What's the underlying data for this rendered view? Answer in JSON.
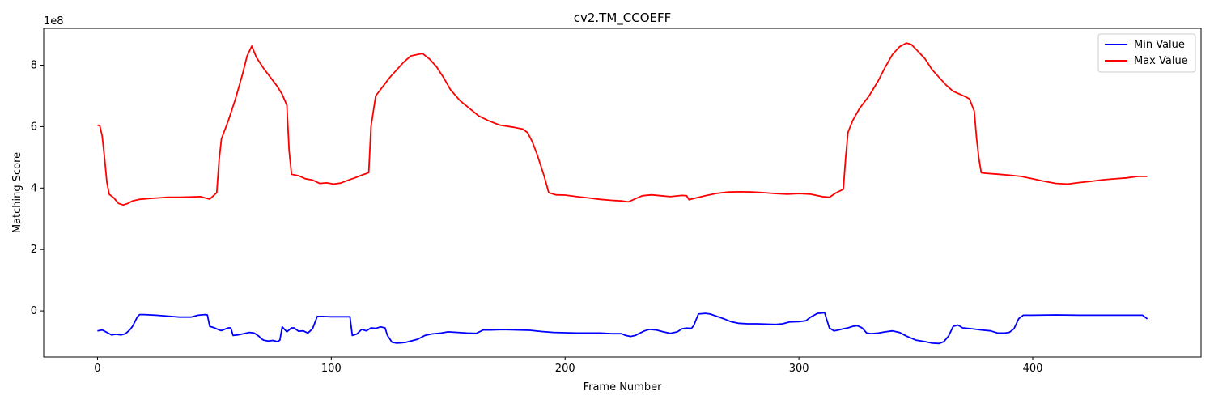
{
  "chart_data": {
    "type": "line",
    "title": "cv2.TM_CCOEFF",
    "xlabel": "Frame Number",
    "ylabel": "Matching Score",
    "y_offset_label": "1e8",
    "xlim": [
      -23,
      472
    ],
    "ylim": [
      -1.5,
      9.2
    ],
    "x_ticks": [
      0,
      100,
      200,
      300,
      400
    ],
    "y_ticks": [
      0,
      2,
      4,
      6,
      8
    ],
    "grid": false,
    "legend_position": "top-right",
    "series": [
      {
        "name": "Min Value",
        "color": "#0000ff",
        "points": [
          [
            0,
            -0.65
          ],
          [
            2,
            -0.62
          ],
          [
            4,
            -0.7
          ],
          [
            6,
            -0.78
          ],
          [
            8,
            -0.76
          ],
          [
            10,
            -0.78
          ],
          [
            12,
            -0.74
          ],
          [
            14,
            -0.6
          ],
          [
            15,
            -0.5
          ],
          [
            17,
            -0.2
          ],
          [
            18,
            -0.12
          ],
          [
            20,
            -0.12
          ],
          [
            25,
            -0.14
          ],
          [
            30,
            -0.17
          ],
          [
            35,
            -0.2
          ],
          [
            40,
            -0.2
          ],
          [
            43,
            -0.14
          ],
          [
            46,
            -0.12
          ],
          [
            47,
            -0.13
          ],
          [
            48,
            -0.5
          ],
          [
            50,
            -0.55
          ],
          [
            52,
            -0.62
          ],
          [
            53,
            -0.64
          ],
          [
            55,
            -0.58
          ],
          [
            56,
            -0.55
          ],
          [
            57,
            -0.55
          ],
          [
            58,
            -0.8
          ],
          [
            60,
            -0.78
          ],
          [
            62,
            -0.75
          ],
          [
            65,
            -0.7
          ],
          [
            67,
            -0.72
          ],
          [
            69,
            -0.82
          ],
          [
            70,
            -0.9
          ],
          [
            71,
            -0.95
          ],
          [
            73,
            -0.98
          ],
          [
            75,
            -0.96
          ],
          [
            77,
            -1.0
          ],
          [
            78,
            -0.95
          ],
          [
            79,
            -0.52
          ],
          [
            80,
            -0.6
          ],
          [
            81,
            -0.68
          ],
          [
            83,
            -0.55
          ],
          [
            84,
            -0.55
          ],
          [
            86,
            -0.66
          ],
          [
            88,
            -0.65
          ],
          [
            90,
            -0.72
          ],
          [
            92,
            -0.58
          ],
          [
            94,
            -0.18
          ],
          [
            96,
            -0.18
          ],
          [
            100,
            -0.19
          ],
          [
            105,
            -0.19
          ],
          [
            107,
            -0.19
          ],
          [
            108,
            -0.19
          ],
          [
            109,
            -0.8
          ],
          [
            111,
            -0.75
          ],
          [
            113,
            -0.6
          ],
          [
            115,
            -0.65
          ],
          [
            117,
            -0.55
          ],
          [
            119,
            -0.57
          ],
          [
            121,
            -0.52
          ],
          [
            123,
            -0.55
          ],
          [
            124,
            -0.8
          ],
          [
            126,
            -1.02
          ],
          [
            128,
            -1.05
          ],
          [
            130,
            -1.04
          ],
          [
            132,
            -1.02
          ],
          [
            134,
            -0.98
          ],
          [
            137,
            -0.92
          ],
          [
            140,
            -0.8
          ],
          [
            143,
            -0.75
          ],
          [
            147,
            -0.72
          ],
          [
            150,
            -0.68
          ],
          [
            154,
            -0.7
          ],
          [
            158,
            -0.72
          ],
          [
            162,
            -0.73
          ],
          [
            165,
            -0.62
          ],
          [
            168,
            -0.62
          ],
          [
            172,
            -0.61
          ],
          [
            175,
            -0.61
          ],
          [
            180,
            -0.62
          ],
          [
            185,
            -0.63
          ],
          [
            190,
            -0.67
          ],
          [
            195,
            -0.7
          ],
          [
            200,
            -0.71
          ],
          [
            205,
            -0.72
          ],
          [
            210,
            -0.72
          ],
          [
            215,
            -0.72
          ],
          [
            220,
            -0.74
          ],
          [
            224,
            -0.74
          ],
          [
            226,
            -0.8
          ],
          [
            228,
            -0.83
          ],
          [
            230,
            -0.8
          ],
          [
            232,
            -0.72
          ],
          [
            234,
            -0.65
          ],
          [
            236,
            -0.6
          ],
          [
            239,
            -0.62
          ],
          [
            242,
            -0.68
          ],
          [
            245,
            -0.73
          ],
          [
            248,
            -0.68
          ],
          [
            250,
            -0.58
          ],
          [
            252,
            -0.56
          ],
          [
            254,
            -0.57
          ],
          [
            255,
            -0.48
          ],
          [
            257,
            -0.1
          ],
          [
            260,
            -0.08
          ],
          [
            262,
            -0.1
          ],
          [
            265,
            -0.18
          ],
          [
            268,
            -0.26
          ],
          [
            271,
            -0.35
          ],
          [
            274,
            -0.4
          ],
          [
            278,
            -0.42
          ],
          [
            282,
            -0.42
          ],
          [
            286,
            -0.43
          ],
          [
            290,
            -0.44
          ],
          [
            293,
            -0.42
          ],
          [
            296,
            -0.36
          ],
          [
            300,
            -0.35
          ],
          [
            303,
            -0.32
          ],
          [
            305,
            -0.2
          ],
          [
            308,
            -0.08
          ],
          [
            311,
            -0.06
          ],
          [
            313,
            -0.55
          ],
          [
            315,
            -0.65
          ],
          [
            317,
            -0.62
          ],
          [
            319,
            -0.58
          ],
          [
            321,
            -0.55
          ],
          [
            323,
            -0.5
          ],
          [
            325,
            -0.48
          ],
          [
            327,
            -0.55
          ],
          [
            329,
            -0.72
          ],
          [
            331,
            -0.74
          ],
          [
            334,
            -0.72
          ],
          [
            337,
            -0.68
          ],
          [
            340,
            -0.65
          ],
          [
            343,
            -0.7
          ],
          [
            346,
            -0.82
          ],
          [
            350,
            -0.95
          ],
          [
            354,
            -1.0
          ],
          [
            357,
            -1.05
          ],
          [
            360,
            -1.06
          ],
          [
            362,
            -1.0
          ],
          [
            364,
            -0.82
          ],
          [
            366,
            -0.5
          ],
          [
            368,
            -0.46
          ],
          [
            370,
            -0.55
          ],
          [
            374,
            -0.58
          ],
          [
            378,
            -0.62
          ],
          [
            382,
            -0.65
          ],
          [
            385,
            -0.72
          ],
          [
            388,
            -0.72
          ],
          [
            390,
            -0.7
          ],
          [
            392,
            -0.58
          ],
          [
            394,
            -0.25
          ],
          [
            396,
            -0.14
          ],
          [
            400,
            -0.14
          ],
          [
            410,
            -0.13
          ],
          [
            420,
            -0.14
          ],
          [
            430,
            -0.14
          ],
          [
            440,
            -0.14
          ],
          [
            447,
            -0.14
          ],
          [
            449,
            -0.26
          ]
        ]
      },
      {
        "name": "Max Value",
        "color": "#ff0000",
        "points": [
          [
            0,
            6.05
          ],
          [
            1,
            6.03
          ],
          [
            2,
            5.7
          ],
          [
            3,
            5.0
          ],
          [
            4,
            4.2
          ],
          [
            5,
            3.8
          ],
          [
            7,
            3.68
          ],
          [
            9,
            3.5
          ],
          [
            11,
            3.45
          ],
          [
            13,
            3.5
          ],
          [
            15,
            3.58
          ],
          [
            18,
            3.63
          ],
          [
            22,
            3.66
          ],
          [
            26,
            3.68
          ],
          [
            30,
            3.7
          ],
          [
            35,
            3.7
          ],
          [
            40,
            3.71
          ],
          [
            44,
            3.72
          ],
          [
            48,
            3.64
          ],
          [
            51,
            3.85
          ],
          [
            52,
            4.9
          ],
          [
            53,
            5.6
          ],
          [
            56,
            6.2
          ],
          [
            59,
            6.9
          ],
          [
            62,
            7.7
          ],
          [
            64,
            8.3
          ],
          [
            66,
            8.62
          ],
          [
            68,
            8.25
          ],
          [
            71,
            7.9
          ],
          [
            74,
            7.6
          ],
          [
            77,
            7.3
          ],
          [
            79,
            7.05
          ],
          [
            81,
            6.7
          ],
          [
            82,
            5.2
          ],
          [
            83,
            4.45
          ],
          [
            86,
            4.4
          ],
          [
            89,
            4.3
          ],
          [
            92,
            4.26
          ],
          [
            95,
            4.15
          ],
          [
            98,
            4.17
          ],
          [
            101,
            4.13
          ],
          [
            104,
            4.16
          ],
          [
            107,
            4.25
          ],
          [
            110,
            4.33
          ],
          [
            113,
            4.42
          ],
          [
            116,
            4.5
          ],
          [
            117,
            6.0
          ],
          [
            119,
            7.0
          ],
          [
            122,
            7.3
          ],
          [
            125,
            7.6
          ],
          [
            128,
            7.85
          ],
          [
            131,
            8.1
          ],
          [
            134,
            8.3
          ],
          [
            137,
            8.35
          ],
          [
            139,
            8.38
          ],
          [
            142,
            8.2
          ],
          [
            145,
            7.95
          ],
          [
            148,
            7.6
          ],
          [
            151,
            7.2
          ],
          [
            155,
            6.85
          ],
          [
            159,
            6.6
          ],
          [
            163,
            6.35
          ],
          [
            167,
            6.2
          ],
          [
            172,
            6.05
          ],
          [
            178,
            5.98
          ],
          [
            182,
            5.92
          ],
          [
            184,
            5.8
          ],
          [
            186,
            5.5
          ],
          [
            188,
            5.1
          ],
          [
            191,
            4.4
          ],
          [
            193,
            3.85
          ],
          [
            196,
            3.78
          ],
          [
            200,
            3.77
          ],
          [
            205,
            3.72
          ],
          [
            210,
            3.68
          ],
          [
            215,
            3.63
          ],
          [
            220,
            3.6
          ],
          [
            224,
            3.58
          ],
          [
            227,
            3.55
          ],
          [
            230,
            3.65
          ],
          [
            233,
            3.75
          ],
          [
            237,
            3.78
          ],
          [
            241,
            3.75
          ],
          [
            245,
            3.72
          ],
          [
            250,
            3.76
          ],
          [
            252,
            3.75
          ],
          [
            253,
            3.62
          ],
          [
            256,
            3.68
          ],
          [
            260,
            3.75
          ],
          [
            265,
            3.83
          ],
          [
            270,
            3.87
          ],
          [
            275,
            3.88
          ],
          [
            280,
            3.87
          ],
          [
            285,
            3.85
          ],
          [
            290,
            3.82
          ],
          [
            295,
            3.8
          ],
          [
            300,
            3.82
          ],
          [
            305,
            3.8
          ],
          [
            310,
            3.72
          ],
          [
            313,
            3.7
          ],
          [
            316,
            3.85
          ],
          [
            319,
            3.96
          ],
          [
            320,
            5.0
          ],
          [
            321,
            5.82
          ],
          [
            323,
            6.2
          ],
          [
            326,
            6.6
          ],
          [
            330,
            7.0
          ],
          [
            334,
            7.5
          ],
          [
            337,
            7.95
          ],
          [
            340,
            8.35
          ],
          [
            343,
            8.6
          ],
          [
            346,
            8.72
          ],
          [
            348,
            8.68
          ],
          [
            351,
            8.45
          ],
          [
            354,
            8.2
          ],
          [
            357,
            7.85
          ],
          [
            360,
            7.6
          ],
          [
            363,
            7.35
          ],
          [
            366,
            7.15
          ],
          [
            369,
            7.05
          ],
          [
            371,
            6.98
          ],
          [
            373,
            6.9
          ],
          [
            375,
            6.5
          ],
          [
            376,
            5.6
          ],
          [
            377,
            4.95
          ],
          [
            378,
            4.5
          ],
          [
            380,
            4.48
          ],
          [
            385,
            4.45
          ],
          [
            390,
            4.42
          ],
          [
            395,
            4.38
          ],
          [
            400,
            4.3
          ],
          [
            405,
            4.22
          ],
          [
            410,
            4.15
          ],
          [
            415,
            4.13
          ],
          [
            420,
            4.18
          ],
          [
            425,
            4.22
          ],
          [
            430,
            4.27
          ],
          [
            435,
            4.3
          ],
          [
            440,
            4.33
          ],
          [
            445,
            4.38
          ],
          [
            449,
            4.38
          ]
        ]
      }
    ]
  }
}
